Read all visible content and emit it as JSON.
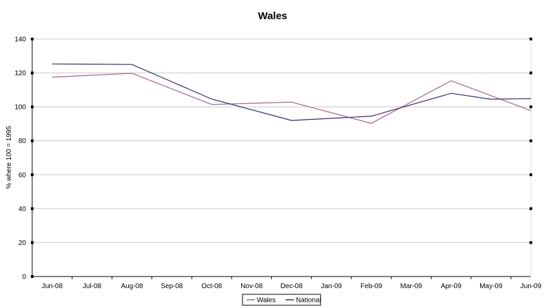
{
  "chart_data": {
    "type": "line",
    "title": "Wales",
    "ylabel": "% where 100 = 1995",
    "xlabel": "",
    "categories": [
      "Jun-08",
      "Jul-08",
      "Aug-08",
      "Sep-08",
      "Oct-08",
      "Nov-08",
      "Dec-08",
      "Jan-09",
      "Feb-09",
      "Mar-09",
      "Apr-09",
      "May-09",
      "Jun-09"
    ],
    "series": [
      {
        "name": "Wales",
        "color": "#a0608a",
        "points": [
          {
            "x": "Jun-08",
            "y": 117.5
          },
          {
            "x": "Aug-08",
            "y": 119.8
          },
          {
            "x": "Oct-08",
            "y": 101.4
          },
          {
            "x": "Dec-08",
            "y": 102.8
          },
          {
            "x": "Feb-09",
            "y": 90.3
          },
          {
            "x": "Apr-09",
            "y": 115.4
          },
          {
            "x": "Jun-09",
            "y": 97.8
          }
        ]
      },
      {
        "name": "National",
        "color": "#2e2a6e",
        "points": [
          {
            "x": "Jun-08",
            "y": 125.3
          },
          {
            "x": "Aug-08",
            "y": 125.0
          },
          {
            "x": "Oct-08",
            "y": 104.6
          },
          {
            "x": "Dec-08",
            "y": 92.0
          },
          {
            "x": "Feb-09",
            "y": 94.5
          },
          {
            "x": "Apr-09",
            "y": 108.0
          },
          {
            "x": "May-09",
            "y": 104.5
          },
          {
            "x": "Jun-09",
            "y": 104.9
          }
        ]
      }
    ],
    "ylim": [
      0,
      140
    ],
    "yticks": [
      0,
      20,
      40,
      60,
      80,
      100,
      120,
      140
    ],
    "grid": true,
    "legend": "bottom-center"
  }
}
